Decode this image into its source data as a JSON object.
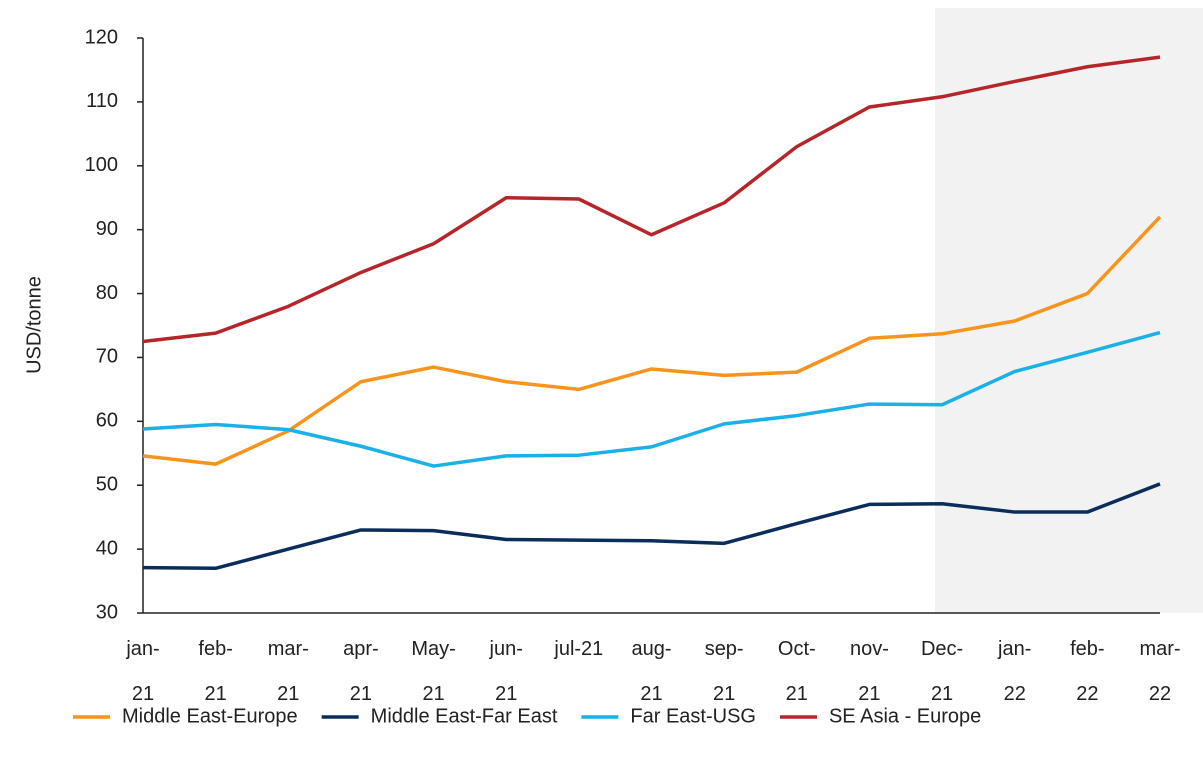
{
  "chart_data": {
    "type": "line",
    "y_label": "USD/tonne",
    "categories": [
      "jan-21",
      "feb-21",
      "mar-21",
      "apr-21",
      "May-21",
      "jun-21",
      "jul-21",
      "aug-21",
      "sep-21",
      "Oct-21",
      "nov-21",
      "Dec-21",
      "jan-22",
      "feb-22",
      "mar-22"
    ],
    "series": [
      {
        "name": "Middle East-Europe",
        "color": "#f7941d",
        "values": [
          54.6,
          53.3,
          58.5,
          66.2,
          68.5,
          66.2,
          65,
          68.2,
          67.2,
          67.7,
          73,
          73.7,
          75.7,
          80,
          92
        ]
      },
      {
        "name": "Middle East-Far East",
        "color": "#0b2d5b",
        "values": [
          37.1,
          37,
          40,
          43,
          42.9,
          41.5,
          41.4,
          41.3,
          40.9,
          44,
          47,
          47.1,
          45.8,
          45.8,
          50.2
        ]
      },
      {
        "name": "Far East-USG",
        "color": "#1ab0e8",
        "values": [
          58.8,
          59.5,
          58.7,
          56.1,
          53,
          54.6,
          54.7,
          56,
          59.6,
          60.9,
          62.7,
          62.6,
          67.8,
          70.8,
          73.9
        ]
      },
      {
        "name": "SE Asia - Europe",
        "color": "#b5252a",
        "values": [
          72.5,
          73.8,
          78,
          83.3,
          87.8,
          95,
          94.8,
          89.2,
          94.2,
          103,
          109.2,
          110.8,
          113.2,
          115.5,
          117
        ]
      }
    ],
    "ylim": [
      30,
      120
    ],
    "yticks": [
      30,
      40,
      50,
      60,
      70,
      80,
      90,
      100,
      110,
      120
    ],
    "legend": "bottom"
  }
}
